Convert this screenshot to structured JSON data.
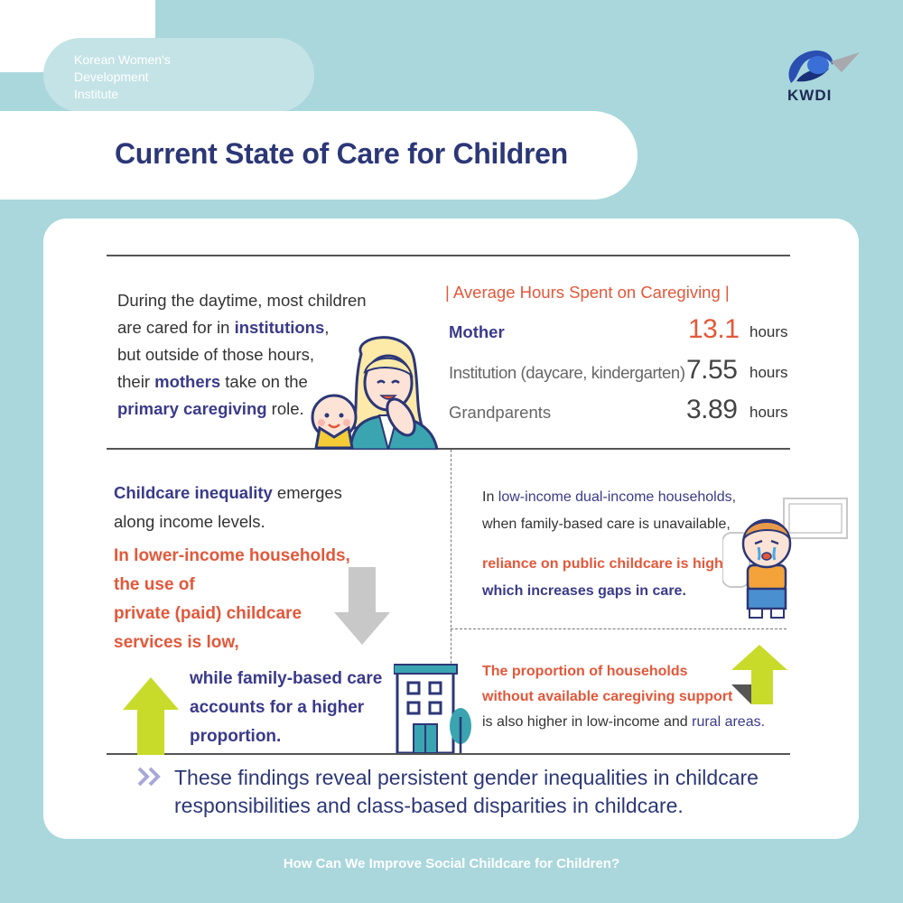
{
  "header": {
    "org_name_lines": [
      "Korean Women's",
      "Development",
      "Institute"
    ],
    "logo_text": "KWDI",
    "title": "Current State of Care for Children"
  },
  "intro": {
    "p1": "During the daytime, most children",
    "p2a": "are cared for in ",
    "p2b": "institutions",
    "p2c": ",",
    "p3": "but outside of those hours,",
    "p4a": "their ",
    "p4b": "mothers",
    "p4c": " take on the",
    "p5a": "primary caregiving",
    "p5b": " role."
  },
  "hours": {
    "title": "| Average Hours Spent on Caregiving |",
    "rows": [
      {
        "label": "Mother",
        "value": "13.1",
        "unit": "hours"
      },
      {
        "label": "Institution (daycare, kindergarten)",
        "value": "7.55",
        "unit": "hours"
      },
      {
        "label": "Grandparents",
        "value": "3.89",
        "unit": "hours"
      }
    ]
  },
  "inequality": {
    "l1a": "Childcare inequality",
    "l1b": " emerges",
    "l2": "along income levels.",
    "lower_lines": [
      "In lower-income households,",
      "the use of",
      "private (paid) childcare",
      "services is low,"
    ],
    "family_lines": [
      "while family-based care",
      "accounts for a higher",
      "proportion."
    ]
  },
  "dual": {
    "l1a": "In ",
    "l1b": "low-income dual-income households,",
    "l2": "when family-based care is unavailable,",
    "r1": "reliance on public childcare is high,",
    "r2": "which increases gaps in care."
  },
  "support": {
    "l1": "The proportion of households",
    "l2": "without available caregiving support",
    "l3a": "is also higher in low-income and ",
    "l3b": "rural areas."
  },
  "findings": {
    "l1": "These findings reveal persistent gender inequalities in childcare",
    "l2": "responsibilities and class-based disparities in childcare."
  },
  "footer": "How Can We Improve Social Childcare for Children?",
  "colors": {
    "background": "#a9d7dc",
    "navy": "#2c3777",
    "orange": "#e2583b",
    "lime": "#c9db2a"
  },
  "icons": [
    "kwdi-logo-icon",
    "mother-baby-illustration",
    "down-arrow-icon",
    "up-arrow-icon",
    "building-icon",
    "crying-child-illustration",
    "double-chevron-icon"
  ]
}
